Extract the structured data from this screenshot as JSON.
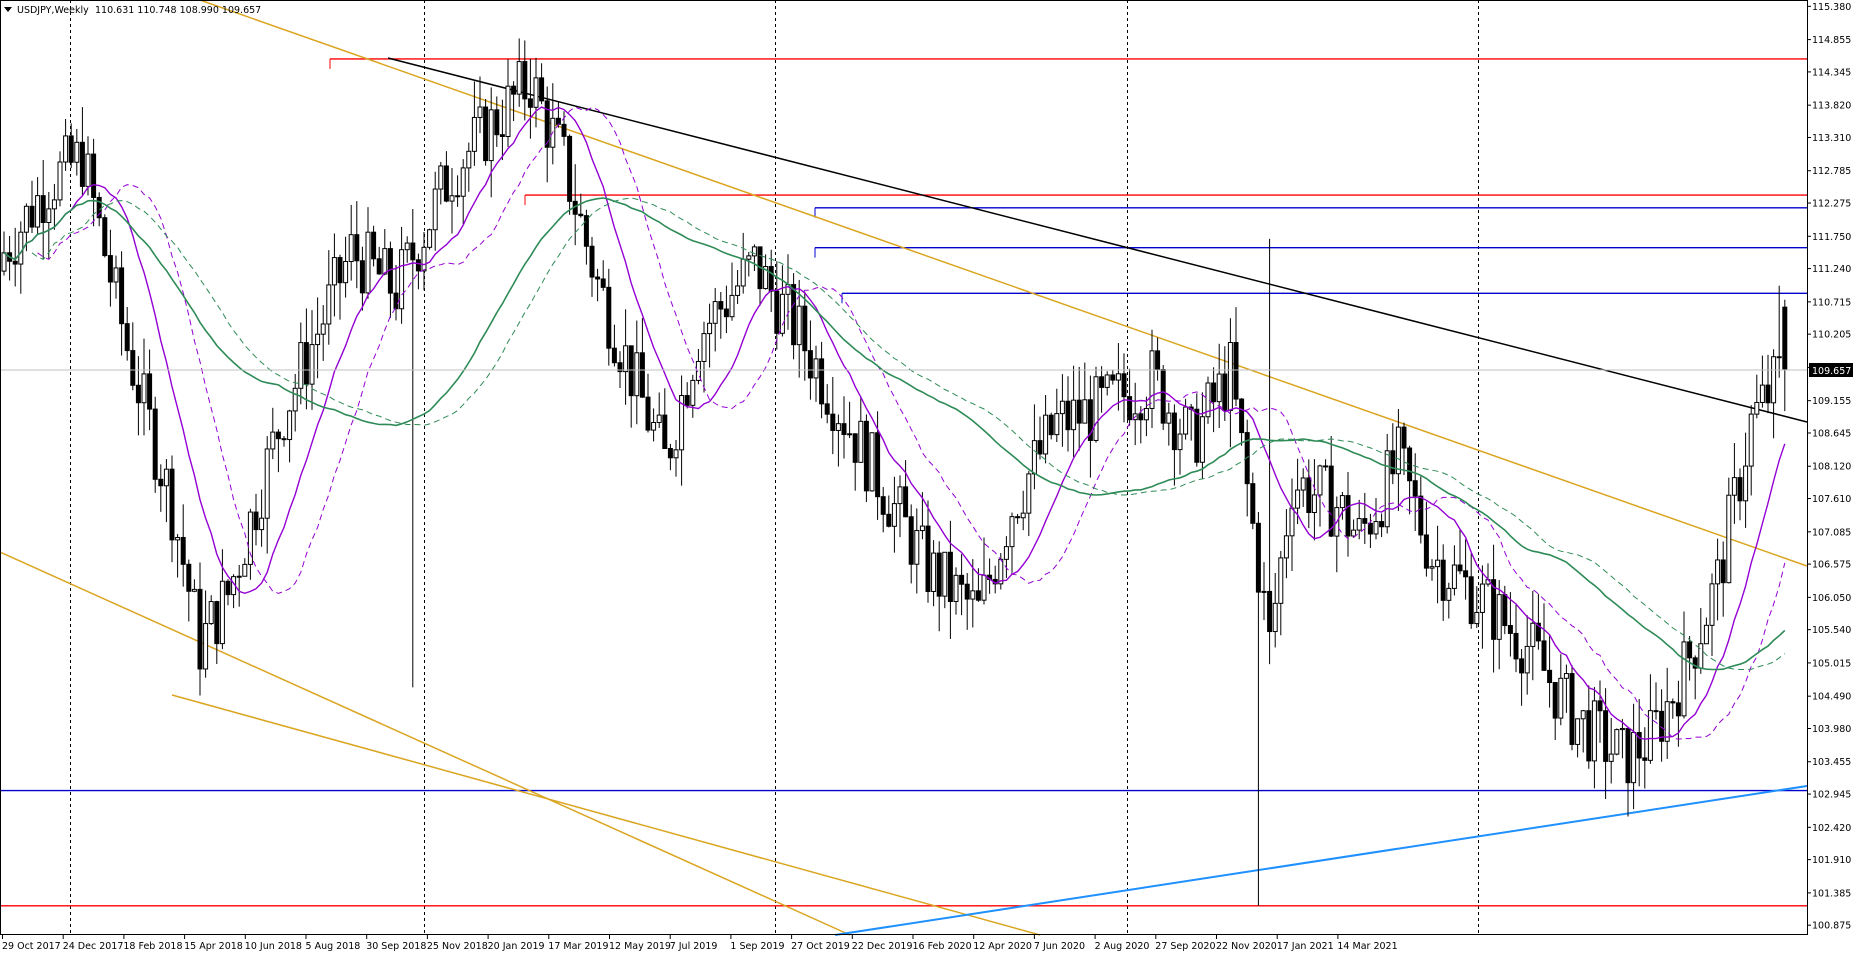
{
  "header": {
    "symbol": "USDJPY,Weekly",
    "ohlc": "110.631 110.748 108.990 109.657"
  },
  "price_axis": {
    "ticks": [
      "115.380",
      "114.855",
      "114.345",
      "113.820",
      "113.310",
      "112.785",
      "112.275",
      "111.750",
      "111.240",
      "110.715",
      "110.205",
      "109.680",
      "109.155",
      "108.645",
      "108.120",
      "107.610",
      "107.085",
      "106.575",
      "106.050",
      "105.540",
      "105.015",
      "104.490",
      "103.980",
      "103.455",
      "102.945",
      "102.420",
      "101.910",
      "101.385",
      "100.875"
    ],
    "current_price_label": "109.657"
  },
  "time_axis": {
    "labels": [
      "29 Oct 2017",
      "24 Dec 2017",
      "18 Feb 2018",
      "15 Apr 2018",
      "10 Jun 2018",
      "5 Aug 2018",
      "30 Sep 2018",
      "25 Nov 2018",
      "20 Jan 2019",
      "17 Mar 2019",
      "12 May 2019",
      "7 Jul 2019",
      "1 Sep 2019",
      "27 Oct 2019",
      "22 Dec 2019",
      "16 Feb 2020",
      "12 Apr 2020",
      "7 Jun 2020",
      "2 Aug 2020",
      "27 Sep 2020",
      "22 Nov 2020",
      "17 Jan 2021",
      "14 Mar 2021"
    ]
  },
  "colors": {
    "background": "#ffffff",
    "candle": "#000000",
    "horizontal_red": "#ff0000",
    "horizontal_blue": "#0000cd",
    "channel_orange": "#daa520",
    "trend_black": "#000000",
    "trend_lightblue": "#1e90ff",
    "ma_fast": "#9400d3",
    "ma_slow": "#2e8b57"
  },
  "chart_data": {
    "type": "candlestick",
    "symbol": "USDJPY",
    "timeframe": "Weekly",
    "ylim": [
      100.72,
      115.48
    ],
    "current_price": 109.657,
    "last_bar": {
      "open": 110.631,
      "high": 110.748,
      "low": 108.99,
      "close": 109.657
    },
    "key_points": [
      {
        "date": "30 Sep 2018",
        "approx_high": 114.55
      },
      {
        "date": "Mar 2018",
        "approx_low": 104.63
      },
      {
        "date": "Mar 2020",
        "approx_high": 111.71
      },
      {
        "date": "Mar 2020",
        "approx_low": 101.18
      },
      {
        "date": "Jan 2021",
        "approx_low": 102.59
      },
      {
        "date": "Mar 2021",
        "approx_high": 110.97
      }
    ],
    "horizontal_levels": [
      {
        "price": 114.55,
        "color": "red"
      },
      {
        "price": 112.4,
        "color": "red"
      },
      {
        "price": 112.2,
        "color": "blue"
      },
      {
        "price": 111.57,
        "color": "blue"
      },
      {
        "price": 110.85,
        "color": "blue"
      },
      {
        "price": 103.0,
        "color": "blue"
      },
      {
        "price": 101.18,
        "color": "red"
      }
    ],
    "indicators": [
      "fast moving average (purple, solid and dashed)",
      "slow moving average (green, solid and dashed)"
    ]
  }
}
